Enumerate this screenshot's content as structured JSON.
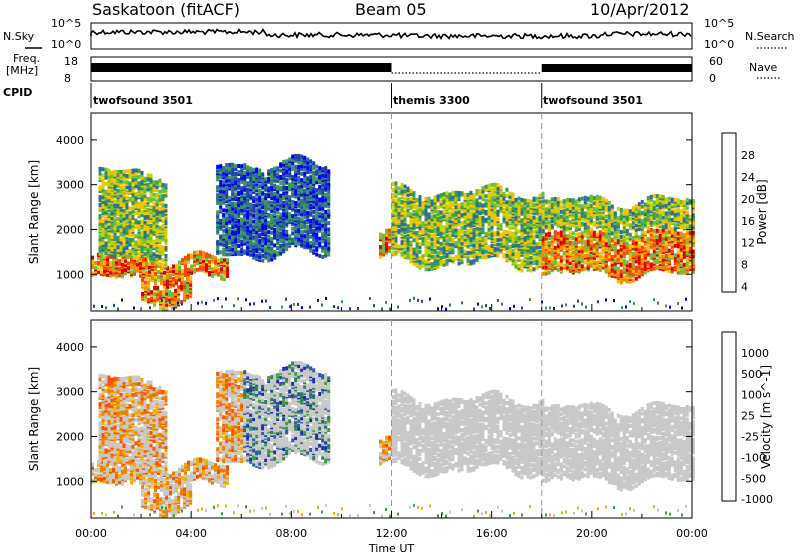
{
  "header": {
    "station": "Saskatoon (fitACF)",
    "beam": "Beam 05",
    "date": "10/Apr/2012"
  },
  "top_panel": {
    "nsky_label": "N.Sky",
    "nsky_ticks": [
      "10^5",
      "10^0"
    ],
    "nsearch_label": "N.Search",
    "nsearch_ticks": [
      "10^5",
      "10^0"
    ],
    "freq_label_1": "Freq.",
    "freq_label_2": "[MHz]",
    "freq_ticks": [
      "18",
      "8"
    ],
    "nave_label": "Nave",
    "nave_ticks": [
      "60",
      "0"
    ],
    "cpid_label": "CPID",
    "cpid_segments": [
      {
        "name": "twofsound 3501",
        "start_hour": 0,
        "end_hour": 12
      },
      {
        "name": "themis 3300",
        "start_hour": 12,
        "end_hour": 18
      },
      {
        "name": "twofsound 3501",
        "start_hour": 18,
        "end_hour": 24
      }
    ]
  },
  "axes": {
    "x_ticks": [
      "00:00",
      "04:00",
      "08:00",
      "12:00",
      "16:00",
      "20:00",
      "00:00"
    ],
    "x_label": "Time UT",
    "y_label": "Slant Range [km]",
    "y_ticks": [
      "1000",
      "2000",
      "3000",
      "4000"
    ]
  },
  "power_colorbar": {
    "label": "Power [dB]",
    "ticks": [
      "28",
      "24",
      "20",
      "16",
      "12",
      "8",
      "4"
    ],
    "colors": [
      "#e00000",
      "#ff4500",
      "#ff8c00",
      "#ffc000",
      "#c8d400",
      "#6cbf3c",
      "#3a9a5a",
      "#2f6f8f",
      "#1f3fb0",
      "#0000ff"
    ]
  },
  "velocity_colorbar": {
    "label": "Velocity [m s^-1]",
    "ticks": [
      "1000",
      "500",
      "100",
      "25",
      "-25",
      "-100",
      "-500",
      "-1000"
    ],
    "colors": [
      "#1a2fb0",
      "#2a5aa8",
      "#2f7f5a",
      "#3fa040",
      "#8fcf70",
      "#c8c8c8",
      "#c8c8c8",
      "#f0b000",
      "#f08000",
      "#ff5000",
      "#e00000"
    ]
  },
  "chart_data": {
    "type": "heatmap",
    "x_range_hours": [
      0,
      24
    ],
    "y_range_km": [
      180,
      4600
    ],
    "power_bands": [
      {
        "t0": 0.0,
        "t1": 5.5,
        "r0": 950,
        "r1": 1400,
        "level": "high"
      },
      {
        "t0": 0.3,
        "t1": 3.0,
        "r0": 1400,
        "r1": 3300,
        "level": "mid"
      },
      {
        "t0": 2.0,
        "t1": 4.0,
        "r0": 450,
        "r1": 900,
        "level": "high"
      },
      {
        "t0": 5.0,
        "t1": 9.5,
        "r0": 1500,
        "r1": 3500,
        "level": "low"
      },
      {
        "t0": 11.5,
        "t1": 12.0,
        "r0": 1400,
        "r1": 1900,
        "level": "high"
      },
      {
        "t0": 12.0,
        "t1": 18.0,
        "r0": 1300,
        "r1": 2900,
        "level": "mid"
      },
      {
        "t0": 18.0,
        "t1": 24.0,
        "r0": 1050,
        "r1": 1950,
        "level": "high"
      },
      {
        "t0": 18.0,
        "t1": 24.0,
        "r0": 2000,
        "r1": 2700,
        "level": "mid"
      }
    ]
  }
}
